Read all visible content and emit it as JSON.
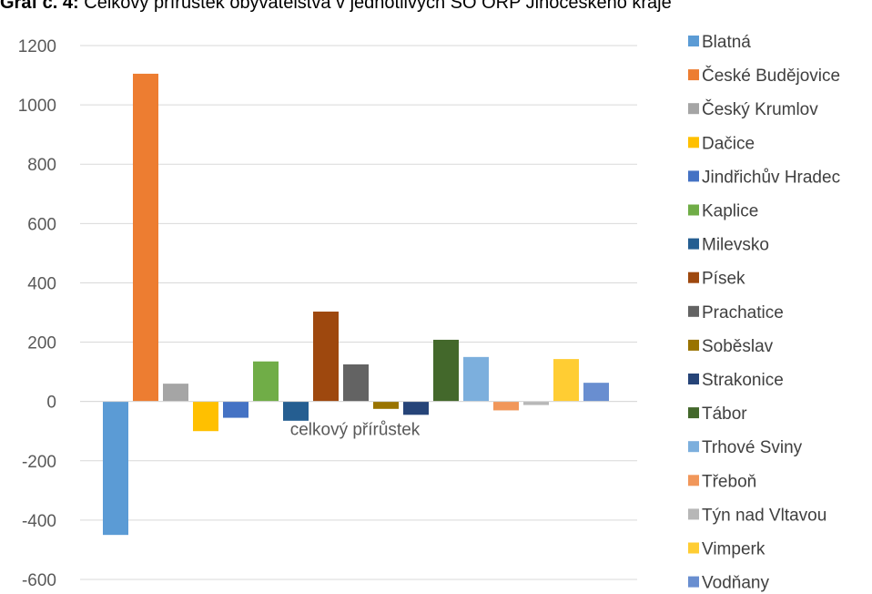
{
  "header": {
    "prefix": "Graf č. 4:",
    "title": "Celkový přírůstek obyvatelstva v jednotlivých SO ORP Jihočeského kraje"
  },
  "chart_data": {
    "type": "bar",
    "categories": [
      "celkový přírůstek"
    ],
    "ylim": [
      -600,
      1200
    ],
    "yticks": [
      -600,
      -400,
      -200,
      0,
      200,
      400,
      600,
      800,
      1000,
      1200
    ],
    "grid": true,
    "legend_position": "right",
    "series": [
      {
        "name": "Blatná",
        "values": [
          -450
        ],
        "color": "#5B9BD5"
      },
      {
        "name": "České Budějovice",
        "values": [
          1105
        ],
        "color": "#ED7D31"
      },
      {
        "name": "Český Krumlov",
        "values": [
          60
        ],
        "color": "#A5A5A5"
      },
      {
        "name": "Dačice",
        "values": [
          -100
        ],
        "color": "#FFC000"
      },
      {
        "name": "Jindřichův Hradec",
        "values": [
          -55
        ],
        "color": "#4472C4"
      },
      {
        "name": "Kaplice",
        "values": [
          135
        ],
        "color": "#70AD47"
      },
      {
        "name": "Milevsko",
        "values": [
          -65
        ],
        "color": "#255E91"
      },
      {
        "name": "Písek",
        "values": [
          303
        ],
        "color": "#9E480E"
      },
      {
        "name": "Prachatice",
        "values": [
          125
        ],
        "color": "#636363"
      },
      {
        "name": "Soběslav",
        "values": [
          -25
        ],
        "color": "#997300"
      },
      {
        "name": "Strakonice",
        "values": [
          -45
        ],
        "color": "#264478"
      },
      {
        "name": "Tábor",
        "values": [
          208
        ],
        "color": "#43682B"
      },
      {
        "name": "Trhové Sviny",
        "values": [
          150
        ],
        "color": "#7CAFDD"
      },
      {
        "name": "Třeboň",
        "values": [
          -30
        ],
        "color": "#F1975A"
      },
      {
        "name": "Týn nad Vltavou",
        "values": [
          -12
        ],
        "color": "#B7B7B7"
      },
      {
        "name": "Vimperk",
        "values": [
          143
        ],
        "color": "#FFCD33"
      },
      {
        "name": "Vodňany",
        "values": [
          63
        ],
        "color": "#698ED0"
      }
    ]
  }
}
